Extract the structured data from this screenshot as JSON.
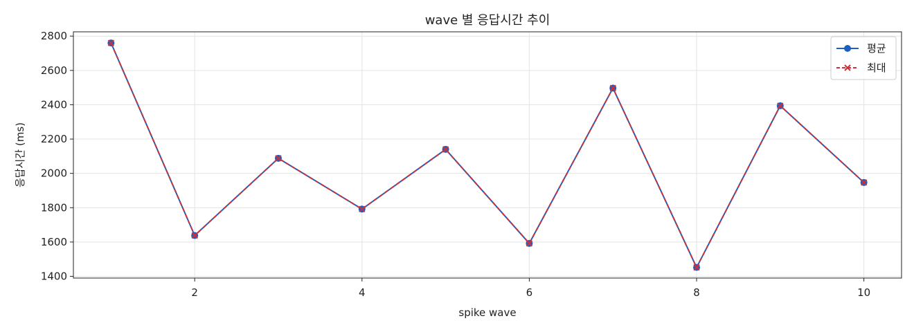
{
  "chart_data": {
    "type": "line",
    "title": "wave 별 응답시간 추이",
    "xlabel": "spike wave",
    "ylabel": "응답시간 (ms)",
    "x": [
      1,
      2,
      3,
      4,
      5,
      6,
      7,
      8,
      9,
      10
    ],
    "xlim": [
      0.55,
      10.45
    ],
    "ylim": [
      1390,
      2825
    ],
    "xticks": [
      2,
      4,
      6,
      8,
      10
    ],
    "yticks": [
      1400,
      1600,
      1800,
      2000,
      2200,
      2400,
      2600,
      2800
    ],
    "grid": true,
    "legend_position": "top-right",
    "series": [
      {
        "name": "평균",
        "values": [
          2760,
          1638,
          2088,
          1792,
          2140,
          1592,
          2497,
          1452,
          2394,
          1947
        ],
        "color": "#1f5fbf",
        "marker": "circle",
        "linestyle": "solid"
      },
      {
        "name": "최대",
        "values": [
          2760,
          1638,
          2088,
          1792,
          2140,
          1592,
          2497,
          1452,
          2394,
          1947
        ],
        "color": "#c8323c",
        "marker": "x",
        "linestyle": "dashed"
      }
    ]
  }
}
